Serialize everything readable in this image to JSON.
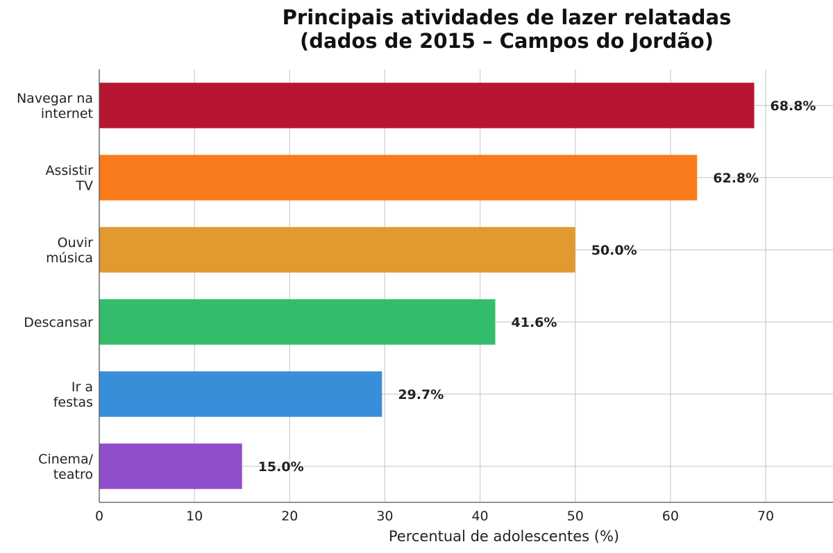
{
  "chart_data": {
    "type": "bar",
    "orientation": "horizontal",
    "title": "Principais atividades de lazer relatadas",
    "subtitle": "(dados de 2015 – Campos do Jordão)",
    "xlabel": "Percentual de adolescentes (%)",
    "ylabel": "",
    "xlim": [
      0,
      70
    ],
    "x_ticks": [
      0,
      10,
      20,
      30,
      40,
      50,
      60,
      70
    ],
    "grid": true,
    "categories": [
      [
        "Navegar na",
        "internet"
      ],
      [
        "Assistir",
        "TV"
      ],
      [
        "Ouvir",
        "música"
      ],
      [
        "Descansar"
      ],
      [
        "Ir a",
        "festas"
      ],
      [
        "Cinema/",
        "teatro"
      ]
    ],
    "values": [
      68.8,
      62.8,
      50.0,
      41.6,
      29.7,
      15.0
    ],
    "value_labels": [
      "68.8%",
      "62.8%",
      "50.0%",
      "41.6%",
      "29.7%",
      "15.0%"
    ],
    "colors": [
      "#b71632",
      "#f97b1c",
      "#e09a2f",
      "#33bd6b",
      "#388ed9",
      "#914ecb"
    ]
  }
}
